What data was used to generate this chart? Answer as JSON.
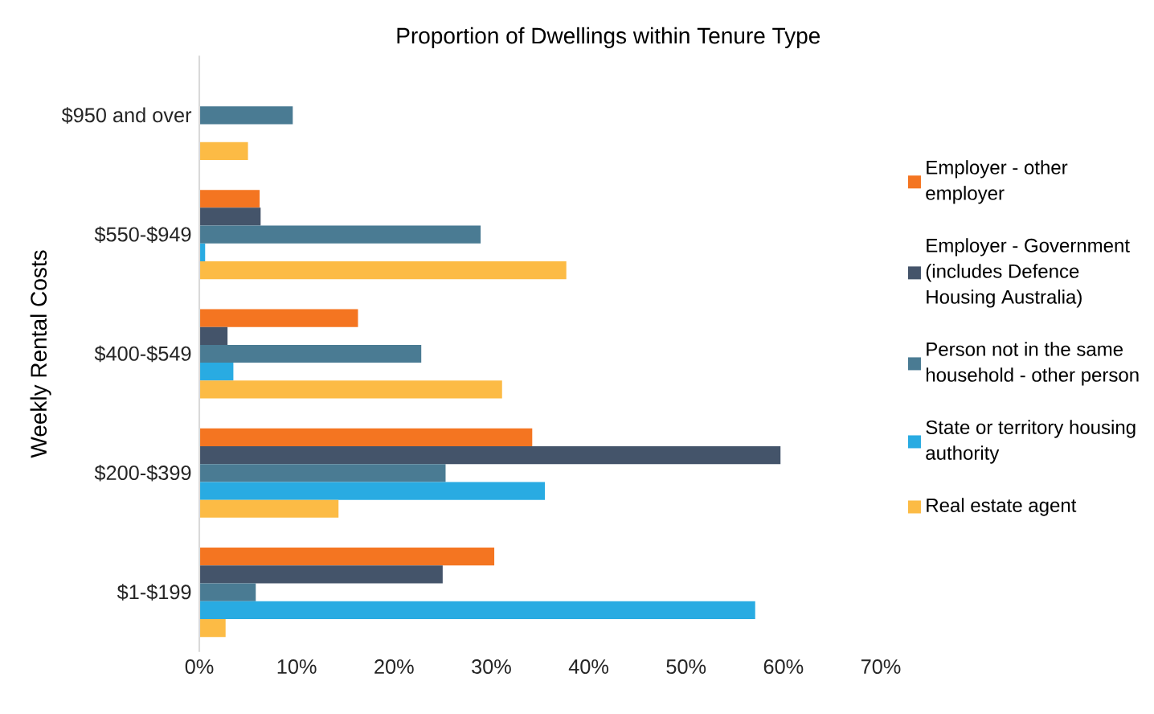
{
  "chart_data": {
    "type": "bar",
    "orientation": "horizontal",
    "title": "Proportion of Dwellings within Tenure Type",
    "ylabel": "Weekly Rental Costs",
    "categories": [
      "$950 and over",
      "$550-$949",
      "$400-$549",
      "$200-$399",
      "$1-$199"
    ],
    "series": [
      {
        "name": "Employer - other employer",
        "color": "#f47521",
        "values": [
          0,
          6.2,
          16.3,
          34.2,
          30.3
        ]
      },
      {
        "name": "Employer - Government (includes Defence Housing Australia)",
        "color": "#44546a",
        "values": [
          0,
          6.3,
          2.9,
          59.7,
          25.0
        ]
      },
      {
        "name": "Person not in the same household - other person",
        "color": "#4a7b93",
        "values": [
          9.6,
          28.9,
          22.8,
          25.3,
          5.8
        ]
      },
      {
        "name": "State or territory housing authority",
        "color": "#29abe2",
        "values": [
          0,
          0.6,
          3.5,
          35.5,
          57.1
        ]
      },
      {
        "name": "Real estate agent",
        "color": "#fcbb45",
        "values": [
          5.0,
          37.7,
          31.1,
          14.3,
          2.7
        ]
      }
    ],
    "xlim": [
      0,
      70
    ],
    "xticks": [
      {
        "value": 0,
        "label": "0%"
      },
      {
        "value": 10,
        "label": "10%"
      },
      {
        "value": 20,
        "label": "20%"
      },
      {
        "value": 30,
        "label": "30%"
      },
      {
        "value": 40,
        "label": "40%"
      },
      {
        "value": 50,
        "label": "50%"
      },
      {
        "value": 60,
        "label": "60%"
      },
      {
        "value": 70,
        "label": "70%"
      }
    ],
    "grid": false,
    "legend": "right"
  }
}
